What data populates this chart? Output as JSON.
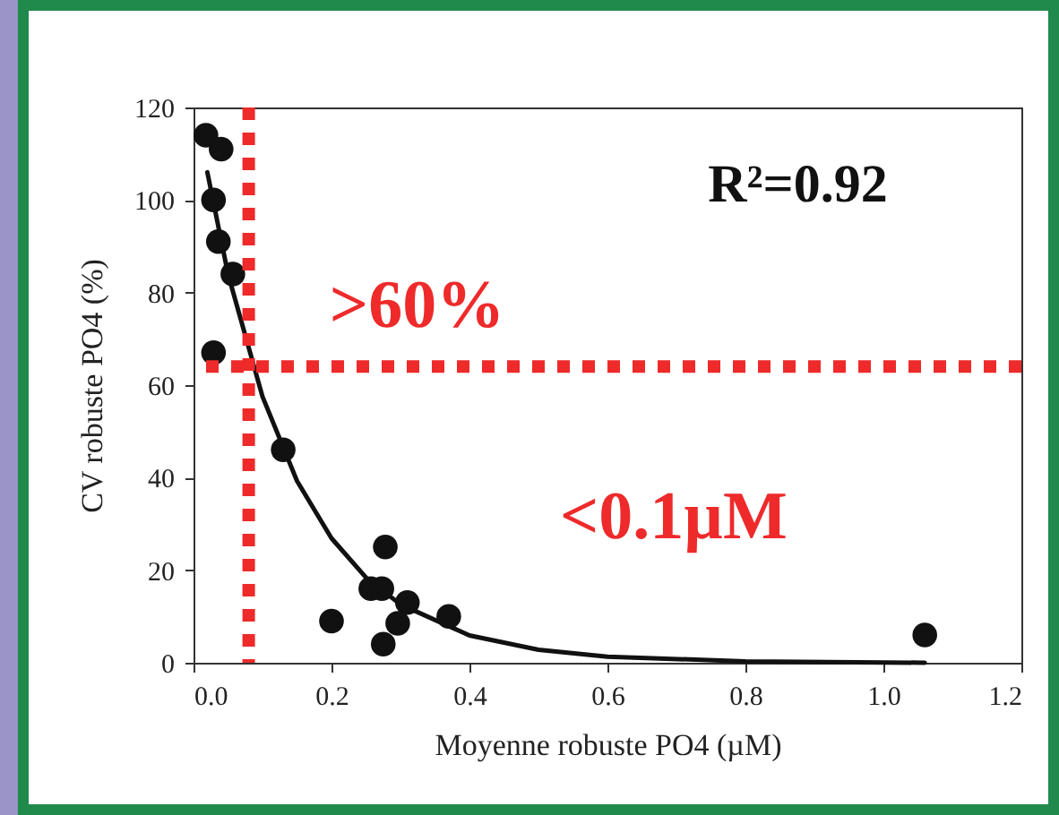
{
  "chart_data": {
    "type": "scatter",
    "xlabel": "Moyenne robuste PO4 (µM)",
    "ylabel": "CV robuste PO4 (%)",
    "xlim": [
      0,
      1.2
    ],
    "xticks": [
      {
        "value": 0,
        "label": "0.0"
      },
      0.2,
      0.4,
      0.6,
      0.8,
      {
        "value": 1,
        "label": "1.0"
      },
      1.2
    ],
    "ylim": [
      0,
      120
    ],
    "yticks": [
      0,
      20,
      40,
      60,
      80,
      100,
      120
    ],
    "series": [
      {
        "marker": "circle",
        "color": "#111111",
        "x": [
          0.018,
          0.04,
          0.029,
          0.036,
          0.057,
          0.029,
          0.13,
          0.278,
          0.257,
          0.273,
          0.31,
          0.2,
          0.296,
          0.275,
          0.37,
          1.06
        ],
        "values": [
          114,
          111,
          100,
          91,
          84,
          67,
          46,
          25,
          16,
          16,
          13,
          9,
          8.5,
          4,
          10,
          6
        ]
      },
      {
        "type": "line",
        "color": "#111111",
        "x": [
          0.02,
          0.05,
          0.1,
          0.15,
          0.2,
          0.25,
          0.3,
          0.4,
          0.5,
          0.6,
          0.8,
          1.06
        ],
        "values": [
          106,
          84,
          57.5,
          39.3,
          26.9,
          18.4,
          12.6,
          5.9,
          2.8,
          1.3,
          0.3,
          0
        ]
      }
    ],
    "grid": false,
    "ref_lines": [
      {
        "axis": "x",
        "value": 0.08,
        "color": "#ee2a2a",
        "line_style": "dotted"
      },
      {
        "axis": "y",
        "value": 64,
        "color": "#ee2a2a",
        "line_style": "dotted"
      }
    ],
    "annotations": [
      "R²=0.92",
      ">60%",
      "<0.1µM"
    ]
  }
}
